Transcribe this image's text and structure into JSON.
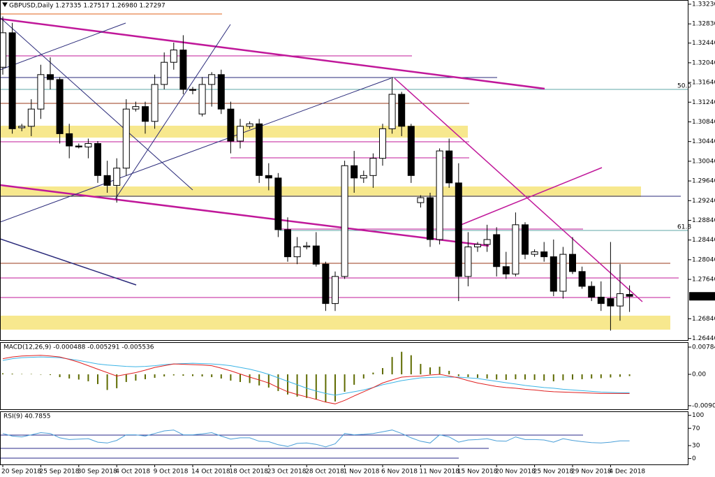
{
  "chart_data": [
    {
      "type": "candlestick",
      "title": "GBPUSD,Daily  1.27335 1.27517 1.26980 1.27297",
      "categories": [
        "20 Sep 2018",
        null,
        null,
        null,
        "25 Sep 2018",
        null,
        null,
        null,
        "30 Sep 2018",
        null,
        null,
        null,
        "4 Oct 2018",
        null,
        null,
        null,
        "9 Oct 2018",
        null,
        null,
        null,
        "14 Oct 2018",
        null,
        null,
        null,
        "18 Oct 2018",
        null,
        null,
        null,
        "23 Oct 2018",
        null,
        null,
        null,
        "28 Oct 2018",
        null,
        null,
        null,
        "1 Nov 2018",
        null,
        null,
        null,
        "6 Nov 2018",
        null,
        null,
        null,
        "11 Nov 2018",
        null,
        null,
        null,
        "15 Nov 2018",
        null,
        null,
        null,
        "20 Nov 2018",
        null,
        null,
        null,
        "25 Nov 2018",
        null,
        null,
        null,
        "29 Nov 2018",
        null,
        null,
        null,
        "4 Dec 2018",
        null,
        null
      ],
      "open": [
        1.3195,
        1.3265,
        1.3072,
        1.3075,
        1.311,
        1.318,
        1.317,
        1.306,
        1.3035,
        1.3033,
        1.304,
        1.2975,
        1.2955,
        1.299,
        1.311,
        1.3115,
        1.3085,
        1.316,
        1.3205,
        1.323,
        1.315,
        1.31,
        1.316,
        1.318,
        1.311,
        1.3045,
        1.3075,
        1.308,
        1.2975,
        1.297,
        1.2865,
        1.281,
        1.283,
        1.2832,
        1.2795,
        1.2715,
        1.277,
        1.2995,
        1.297,
        1.2975,
        1.301,
        1.307,
        1.314,
        1.3075,
        1.292,
        1.293,
        1.2845,
        1.3025,
        1.296,
        1.277,
        1.283,
        1.2835,
        1.2855,
        1.279,
        1.2775,
        1.2875,
        1.2815,
        1.282,
        1.281,
        1.274,
        1.2815,
        1.278,
        1.275,
        1.2728,
        1.2725,
        1.271,
        1.27335
      ],
      "high": [
        1.3298,
        1.3285,
        1.308,
        1.313,
        1.32,
        1.3215,
        1.3175,
        1.308,
        1.304,
        1.305,
        1.3045,
        1.3005,
        1.301,
        1.313,
        1.3125,
        1.3125,
        1.318,
        1.3225,
        1.3245,
        1.326,
        1.3155,
        1.3175,
        1.3185,
        1.319,
        1.3125,
        1.309,
        1.3085,
        1.309,
        1.3,
        1.298,
        1.289,
        1.285,
        1.284,
        1.286,
        1.28,
        1.278,
        1.3005,
        1.3025,
        1.2985,
        1.302,
        1.308,
        1.3175,
        1.3145,
        1.308,
        1.2935,
        1.294,
        1.303,
        1.305,
        1.3,
        1.286,
        1.284,
        1.2875,
        1.287,
        1.282,
        1.29,
        1.288,
        1.2825,
        1.284,
        1.2845,
        1.283,
        1.285,
        1.279,
        1.276,
        1.276,
        1.284,
        1.2795,
        1.27517
      ],
      "low": [
        1.318,
        1.306,
        1.3065,
        1.3055,
        1.309,
        1.315,
        1.304,
        1.301,
        1.303,
        1.301,
        1.296,
        1.294,
        1.292,
        1.2975,
        1.3105,
        1.306,
        1.307,
        1.315,
        1.319,
        1.314,
        1.314,
        1.3095,
        1.3115,
        1.31,
        1.302,
        1.303,
        1.307,
        1.296,
        1.2945,
        1.285,
        1.28,
        1.2795,
        1.2825,
        1.279,
        1.27,
        1.27,
        1.2765,
        1.294,
        1.296,
        1.295,
        1.2995,
        1.306,
        1.3055,
        1.296,
        1.291,
        1.283,
        1.2835,
        1.295,
        1.272,
        1.275,
        1.282,
        1.282,
        1.277,
        1.2765,
        1.277,
        1.2805,
        1.281,
        1.28,
        1.273,
        1.2725,
        1.2775,
        1.2745,
        1.272,
        1.27,
        1.266,
        1.268,
        1.2698
      ],
      "close": [
        1.3265,
        1.307,
        1.3075,
        1.311,
        1.318,
        1.317,
        1.306,
        1.3035,
        1.3033,
        1.304,
        1.2975,
        1.2955,
        1.299,
        1.311,
        1.3115,
        1.3085,
        1.316,
        1.3205,
        1.323,
        1.315,
        1.3148,
        1.316,
        1.318,
        1.311,
        1.3045,
        1.3075,
        1.308,
        1.2975,
        1.297,
        1.2865,
        1.281,
        1.283,
        1.2832,
        1.2795,
        1.2715,
        1.277,
        1.2995,
        1.297,
        1.2975,
        1.301,
        1.307,
        1.314,
        1.3075,
        1.2975,
        1.293,
        1.2845,
        1.3025,
        1.296,
        1.277,
        1.283,
        1.2835,
        1.2845,
        1.279,
        1.2775,
        1.2875,
        1.2815,
        1.282,
        1.281,
        1.274,
        1.2815,
        1.278,
        1.275,
        1.2728,
        1.2715,
        1.271,
        1.2735,
        1.27297
      ],
      "up_color": "#ffffff",
      "down_color": "#000000",
      "ylim": [
        1.26407,
        1.33301
      ],
      "yticks": [
        {
          "value": 1.3323,
          "label": "1.33230"
        },
        {
          "value": 1.3283,
          "label": "1.32830"
        },
        {
          "value": 1.3244,
          "label": "1.32440"
        },
        {
          "value": 1.3204,
          "label": "1.32040"
        },
        {
          "value": 1.3164,
          "label": "1.31640"
        },
        {
          "value": 1.3124,
          "label": "1.31240"
        },
        {
          "value": 1.3084,
          "label": "1.30840"
        },
        {
          "value": 1.3044,
          "label": "1.30440"
        },
        {
          "value": 1.3004,
          "label": "1.30040"
        },
        {
          "value": 1.2964,
          "label": "1.29640"
        },
        {
          "value": 1.2924,
          "label": "1.29240"
        },
        {
          "value": 1.2884,
          "label": "1.28840"
        },
        {
          "value": 1.2844,
          "label": "1.28440"
        },
        {
          "value": 1.2804,
          "label": "1.28040"
        },
        {
          "value": 1.2764,
          "label": "1.27640"
        },
        {
          "value": 1.2684,
          "label": "1.26840"
        },
        {
          "value": 1.2644,
          "label": "1.26440"
        }
      ],
      "annotations": [
        "50.0",
        "61.8"
      ],
      "annotation_color": "#2a8a8a"
    },
    {
      "type": "macd",
      "title": "MACD(12,26,9) -0.000488 -0.005291 -0.005536",
      "series": [
        {
          "kind": "bar",
          "color": "#5f6b00",
          "values": [
            0.0003,
            0.0002,
            0.0001,
            0.0001,
            0,
            -0.0002,
            -0.0008,
            -0.0012,
            -0.0015,
            -0.002,
            -0.0028,
            -0.0045,
            -0.004,
            -0.0022,
            -0.0018,
            -0.0014,
            -0.001,
            -0.0006,
            -0.0003,
            -0.0004,
            -0.0005,
            -0.0006,
            -0.0008,
            -0.0012,
            -0.0018,
            -0.0022,
            -0.0025,
            -0.0032,
            -0.0038,
            -0.0048,
            -0.0058,
            -0.0064,
            -0.0068,
            -0.0072,
            -0.008,
            -0.0078,
            -0.005,
            -0.003,
            -0.0012,
            0.0005,
            0.0018,
            0.005,
            0.0065,
            0.0055,
            0.003,
            0.002,
            0.0022,
            0.001,
            -0.0005,
            -0.0008,
            -0.001,
            -0.0012,
            -0.0015,
            -0.0016,
            -0.0014,
            -0.0015,
            -0.0016,
            -0.0018,
            -0.002,
            -0.0017,
            -0.0015,
            -0.0014,
            -0.0012,
            -0.0011,
            -0.0009,
            -0.0007,
            -0.000488
          ]
        },
        {
          "kind": "line",
          "color": "#3cb4e6",
          "values": [
            0.004,
            0.0045,
            0.0048,
            0.0049,
            0.005,
            0.0049,
            0.0048,
            0.0044,
            0.004,
            0.0035,
            0.003,
            0.0027,
            0.0025,
            0.0023,
            0.0022,
            0.0023,
            0.0025,
            0.0028,
            0.003,
            0.0031,
            0.0032,
            0.0031,
            0.003,
            0.0028,
            0.0025,
            0.002,
            0.0015,
            0.0008,
            0,
            -0.001,
            -0.002,
            -0.003,
            -0.004,
            -0.0048,
            -0.0055,
            -0.006,
            -0.0055,
            -0.005,
            -0.0045,
            -0.0038,
            -0.003,
            -0.0024,
            -0.0018,
            -0.0014,
            -0.001,
            -0.0009,
            -0.0008,
            -0.0008,
            -0.0008,
            -0.001,
            -0.0012,
            -0.0016,
            -0.002,
            -0.0024,
            -0.0028,
            -0.0032,
            -0.0035,
            -0.0038,
            -0.004,
            -0.0043,
            -0.0045,
            -0.0047,
            -0.0049,
            -0.0051,
            -0.0052,
            -0.0053,
            -0.005291
          ]
        },
        {
          "kind": "line",
          "color": "#e02020",
          "values": [
            0.0045,
            0.005,
            0.0053,
            0.0054,
            0.0055,
            0.0053,
            0.005,
            0.0043,
            0.0035,
            0.0025,
            0.0015,
            0.0005,
            -0.0005,
            0,
            0.0005,
            0.0012,
            0.002,
            0.0025,
            0.003,
            0.0029,
            0.0028,
            0.0027,
            0.0025,
            0.0018,
            0.001,
            0.0001,
            -0.0008,
            -0.0016,
            -0.0025,
            -0.0038,
            -0.005,
            -0.0058,
            -0.0065,
            -0.0072,
            -0.008,
            -0.0085,
            -0.0075,
            -0.0062,
            -0.005,
            -0.0038,
            -0.0025,
            -0.0016,
            -0.0008,
            -0.0006,
            -0.0005,
            -0.0002,
            0,
            -0.0005,
            -0.001,
            -0.0018,
            -0.0025,
            -0.003,
            -0.0035,
            -0.0038,
            -0.004,
            -0.0043,
            -0.0045,
            -0.0048,
            -0.005,
            -0.0051,
            -0.0052,
            -0.0053,
            -0.0054,
            -0.0055,
            -0.0055,
            -0.0055,
            -0.005536
          ]
        }
      ],
      "ylim": [
        -0.01005,
        0.00905
      ],
      "yticks": [
        0.007842,
        {
          "value": 0,
          "label": "0.00"
        },
        -0.009031
      ]
    },
    {
      "type": "line",
      "title": "RSI(9) 40.7855",
      "series": [
        {
          "color": "#4a9fd8",
          "values": [
            58,
            52,
            50,
            55,
            60,
            58,
            48,
            44,
            45,
            46,
            38,
            36,
            42,
            55,
            55,
            52,
            58,
            64,
            66,
            55,
            55,
            57,
            60,
            52,
            45,
            48,
            48,
            40,
            39,
            32,
            28,
            35,
            36,
            33,
            27,
            34,
            58,
            55,
            56,
            58,
            62,
            66,
            58,
            48,
            40,
            36,
            55,
            50,
            38,
            43,
            44,
            46,
            41,
            40,
            50,
            44,
            44,
            43,
            38,
            46,
            42,
            39,
            37,
            36,
            38,
            41,
            40.7855
          ]
        }
      ],
      "ylim": [
        -12,
        106
      ],
      "yticks": [
        100,
        70,
        30,
        0
      ]
    }
  ]
}
